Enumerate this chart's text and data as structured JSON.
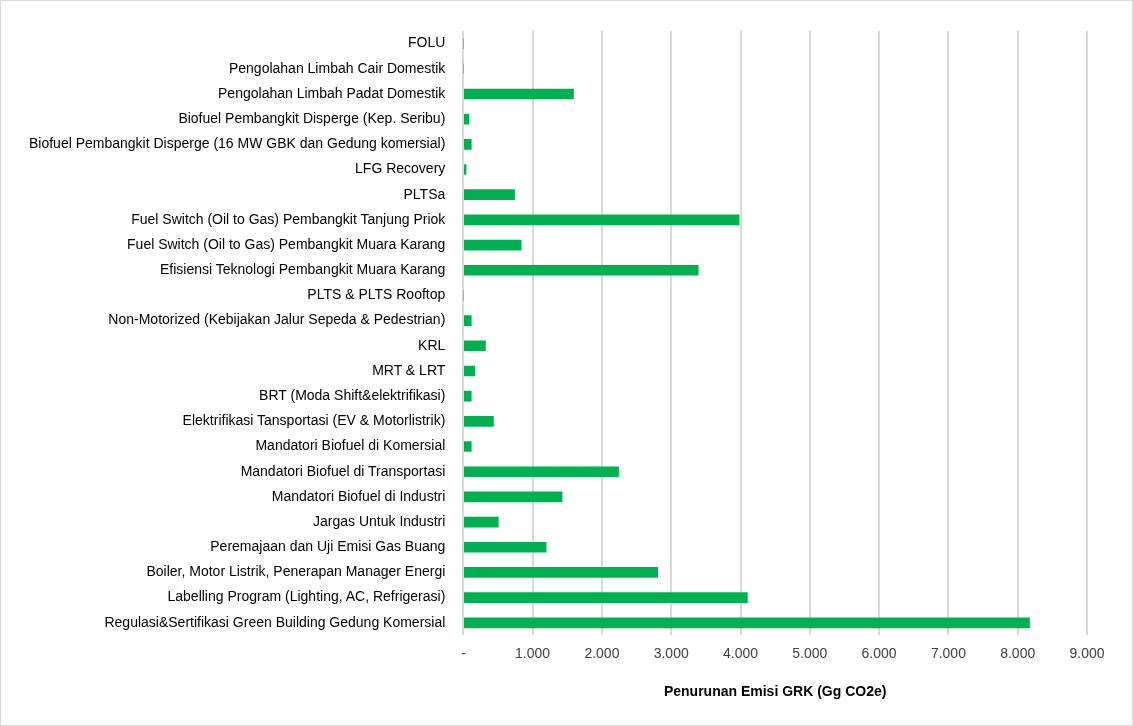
{
  "chart_data": {
    "type": "bar",
    "orientation": "horizontal",
    "xlabel": "Penurunan Emisi GRK (Gg CO2e)",
    "categories": [
      "FOLU",
      "Pengolahan Limbah Cair Domestik",
      "Pengolahan Limbah Padat Domestik",
      "Biofuel Pembangkit Disperge (Kep. Seribu)",
      "Biofuel Pembangkit Disperge (16 MW GBK dan Gedung komersial)",
      "LFG Recovery",
      "PLTSa",
      "Fuel Switch (Oil to Gas) Pembangkit Tanjung Priok",
      "Fuel Switch (Oil to Gas) Pembangkit Muara Karang",
      "Efisiensi Teknologi Pembangkit Muara Karang",
      "PLTS & PLTS Rooftop",
      "Non-Motorized (Kebijakan Jalur Sepeda & Pedestrian)",
      "KRL",
      "MRT & LRT",
      "BRT (Moda Shift&elektrifikasi)",
      "Elektrifikasi Tansportasi (EV & Motorlistrik)",
      "Mandatori Biofuel di Komersial",
      "Mandatori Biofuel di Transportasi",
      "Mandatori Biofuel di Industri",
      "Jargas Untuk Industri",
      "Peremajaan dan Uji Emisi Gas Buang",
      "Boiler, Motor Listrik, Penerapan Manager Energi",
      "Labelling Program (Lighting, AC, Refrigerasi)",
      "Regulasi&Sertifikasi Green Building Gedung Komersial"
    ],
    "values": [
      0,
      0,
      1590,
      80,
      115,
      40,
      740,
      3980,
      835,
      3390,
      0,
      115,
      320,
      165,
      115,
      435,
      115,
      2240,
      1425,
      505,
      1195,
      2805,
      4100,
      8170
    ],
    "color": "#00b050",
    "xlim": [
      0,
      9000
    ],
    "xticks": [
      {
        "value": 0,
        "label": "-"
      },
      {
        "value": 1000,
        "label": "1.000"
      },
      {
        "value": 2000,
        "label": "2.000"
      },
      {
        "value": 3000,
        "label": "3.000"
      },
      {
        "value": 4000,
        "label": "4.000"
      },
      {
        "value": 5000,
        "label": "5.000"
      },
      {
        "value": 6000,
        "label": "6.000"
      },
      {
        "value": 7000,
        "label": "7.000"
      },
      {
        "value": 8000,
        "label": "8.000"
      },
      {
        "value": 9000,
        "label": "9.000"
      }
    ],
    "grid": "x",
    "legend": false
  }
}
